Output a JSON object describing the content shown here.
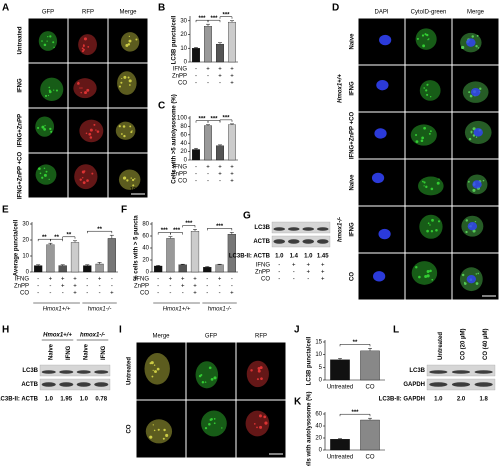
{
  "chart_data": [
    {
      "type": "bar",
      "label": "B",
      "ylabel": "LC3B puncta/cell",
      "ylim": [
        0,
        32
      ],
      "yticks": [
        0,
        10,
        20,
        30
      ],
      "values": [
        10,
        26,
        13,
        29
      ],
      "errors": [
        0.6,
        1.5,
        1,
        1
      ],
      "colors": [
        "#111111",
        "#999999",
        "#555555",
        "#cccccc"
      ],
      "treatments": [
        {
          "name": "IFNG",
          "signs": [
            "-",
            "+",
            "+",
            "+"
          ]
        },
        {
          "name": "ZnPP",
          "signs": [
            "-",
            "-",
            "+",
            "+"
          ]
        },
        {
          "name": "CO",
          "signs": [
            "-",
            "-",
            "-",
            "+"
          ]
        }
      ],
      "significance": [
        {
          "label": "***",
          "bars": [
            0,
            1
          ]
        },
        {
          "label": "***",
          "bars": [
            1,
            2
          ]
        },
        {
          "label": "***",
          "bars": [
            2,
            3
          ]
        }
      ]
    },
    {
      "type": "bar",
      "label": "C",
      "ylabel": "Cells with >5 autolysosome (%)",
      "ylim": [
        0,
        100
      ],
      "yticks": [
        0,
        20,
        40,
        60,
        80,
        100
      ],
      "values": [
        25,
        82,
        34,
        84
      ],
      "errors": [
        3,
        2,
        2,
        2
      ],
      "colors": [
        "#111111",
        "#999999",
        "#555555",
        "#cccccc"
      ],
      "treatments": [
        {
          "name": "IFNG",
          "signs": [
            "-",
            "+",
            "+",
            "+"
          ]
        },
        {
          "name": "ZnPP",
          "signs": [
            "-",
            "-",
            "+",
            "+"
          ]
        },
        {
          "name": "CO",
          "signs": [
            "-",
            "-",
            "-",
            "+"
          ]
        }
      ],
      "significance": [
        {
          "label": "***",
          "bars": [
            0,
            1
          ]
        },
        {
          "label": "***",
          "bars": [
            1,
            2
          ]
        },
        {
          "label": "***",
          "bars": [
            2,
            3
          ]
        }
      ]
    },
    {
      "type": "bar",
      "label": "E",
      "ylabel": "Average puncta/cell",
      "ylim": [
        0,
        30
      ],
      "yticks": [
        0,
        10,
        20,
        30
      ],
      "values": [
        4,
        17,
        4,
        18.5,
        4,
        5,
        21
      ],
      "errors": [
        0.5,
        1,
        0.5,
        1,
        0.5,
        1,
        2
      ],
      "colors": [
        "#111111",
        "#999999",
        "#555555",
        "#cccccc",
        "#111111",
        "#999999",
        "#777777"
      ],
      "treatments": [
        {
          "name": "IFNG",
          "signs": [
            "-",
            "+",
            "+",
            "+",
            "-",
            "+",
            "-"
          ]
        },
        {
          "name": "ZnPP",
          "signs": [
            "-",
            "-",
            "+",
            "+",
            "-",
            "-",
            "-"
          ]
        },
        {
          "name": "CO",
          "signs": [
            "-",
            "-",
            "-",
            "+",
            "-",
            "-",
            "+"
          ]
        }
      ],
      "groups": [
        {
          "name": "Hmox1+/+",
          "bars": [
            0,
            3
          ]
        },
        {
          "name": "hmox1-/-",
          "bars": [
            4,
            6
          ]
        }
      ],
      "significance": [
        {
          "label": "**",
          "bars": [
            0,
            1
          ]
        },
        {
          "label": "**",
          "bars": [
            1,
            2
          ]
        },
        {
          "label": "**",
          "bars": [
            2,
            3
          ]
        },
        {
          "label": "**",
          "bars": [
            4,
            6
          ]
        }
      ]
    },
    {
      "type": "bar",
      "label": "F",
      "ylabel": "% cells with > 5 puncta",
      "ylim": [
        0,
        80
      ],
      "yticks": [
        0,
        20,
        40,
        60,
        80
      ],
      "values": [
        10,
        56,
        12,
        68,
        8,
        12,
        63
      ],
      "errors": [
        1,
        3,
        1,
        3,
        1,
        1,
        3
      ],
      "colors": [
        "#111111",
        "#999999",
        "#555555",
        "#cccccc",
        "#111111",
        "#999999",
        "#777777"
      ],
      "treatments": [
        {
          "name": "IFNG",
          "signs": [
            "-",
            "+",
            "+",
            "+",
            "-",
            "+",
            "-"
          ]
        },
        {
          "name": "ZnPP",
          "signs": [
            "-",
            "-",
            "+",
            "+",
            "-",
            "-",
            "-"
          ]
        },
        {
          "name": "CO",
          "signs": [
            "-",
            "-",
            "-",
            "+",
            "-",
            "-",
            "+"
          ]
        }
      ],
      "groups": [
        {
          "name": "Hmox1+/+",
          "bars": [
            0,
            3
          ]
        },
        {
          "name": "hmox1-/-",
          "bars": [
            4,
            6
          ]
        }
      ],
      "significance": [
        {
          "label": "***",
          "bars": [
            0,
            1
          ]
        },
        {
          "label": "***",
          "bars": [
            1,
            2
          ]
        },
        {
          "label": "***",
          "bars": [
            2,
            3
          ]
        },
        {
          "label": "***",
          "bars": [
            4,
            6
          ]
        }
      ]
    },
    {
      "type": "bar",
      "label": "J",
      "ylabel": "LC3B puncta/cell",
      "ylim": [
        0,
        15
      ],
      "yticks": [
        0,
        5,
        10,
        15
      ],
      "categories": [
        "Untreated",
        "CO"
      ],
      "values": [
        8,
        11.5
      ],
      "errors": [
        0.5,
        1
      ],
      "colors": [
        "#111111",
        "#888888"
      ],
      "significance": [
        {
          "label": "**",
          "bars": [
            0,
            1
          ]
        }
      ]
    },
    {
      "type": "bar",
      "label": "K",
      "ylabel": "Cells with autolysosome (%)",
      "ylim": [
        0,
        60
      ],
      "yticks": [
        0,
        20,
        40,
        60
      ],
      "categories": [
        "Untreated",
        "CO"
      ],
      "values": [
        18,
        50
      ],
      "errors": [
        1,
        3
      ],
      "colors": [
        "#111111",
        "#888888"
      ],
      "significance": [
        {
          "label": "***",
          "bars": [
            0,
            1
          ]
        }
      ]
    }
  ],
  "micrographs": [
    {
      "label": "A",
      "columns": [
        "GFP",
        "RFP",
        "Merge"
      ],
      "rows": [
        "Untreated",
        "IFNG",
        "IFNG+ZnPP",
        "IFNG+ZnPP +CO"
      ],
      "scale_bar": "10 µm"
    },
    {
      "label": "D",
      "columns": [
        "DAPI",
        "CytoID-green",
        "Merge"
      ],
      "rows": [
        "Naive",
        "IFNG",
        "IFNG+ZnPP +CO",
        "Naive",
        "IFNG",
        "CO"
      ],
      "groups": [
        {
          "name": "Hmox1+/+",
          "rows": [
            0,
            2
          ]
        },
        {
          "name": "hmox1-/-",
          "rows": [
            3,
            5
          ]
        }
      ],
      "scale_bar": "10 µm"
    },
    {
      "label": "I",
      "columns": [
        "Merge",
        "GFP",
        "RFP"
      ],
      "rows": [
        "Untreated",
        "CO"
      ],
      "scale_bar": "10 µm"
    }
  ],
  "blots": [
    {
      "label": "G",
      "bands": [
        "LC3B",
        "ACTB"
      ],
      "ratio_label": "LC3B-II: ACTB",
      "ratios": [
        "1.0",
        "1.4",
        "1.0",
        "1.45"
      ],
      "treatments": [
        {
          "name": "IFNG",
          "signs": [
            "-",
            "+",
            "+",
            "+"
          ]
        },
        {
          "name": "ZnPP",
          "signs": [
            "-",
            "-",
            "+",
            "+"
          ]
        },
        {
          "name": "CO",
          "signs": [
            "-",
            "-",
            "-",
            "+"
          ]
        }
      ]
    },
    {
      "label": "H",
      "lanes": [
        "Naive",
        "IFNG",
        "Naive",
        "IFNG"
      ],
      "groups": [
        {
          "name": "Hmox1+/+",
          "lanes": [
            0,
            1
          ]
        },
        {
          "name": "hmox1-/-",
          "lanes": [
            2,
            3
          ]
        }
      ],
      "bands": [
        "LC3B",
        "ACTB"
      ],
      "ratio_label": "LC3B-II: ACTB",
      "ratios": [
        "1.0",
        "1.95",
        "1.0",
        "0.78"
      ]
    },
    {
      "label": "L",
      "lanes": [
        "Untreated",
        "CO (20 µM)",
        "CO (40 µM)"
      ],
      "bands": [
        "LC3B",
        "GAPDH"
      ],
      "ratio_label": "LC3B-II: GAPDH",
      "ratios": [
        "1.0",
        "2.0",
        "1.8"
      ]
    }
  ]
}
